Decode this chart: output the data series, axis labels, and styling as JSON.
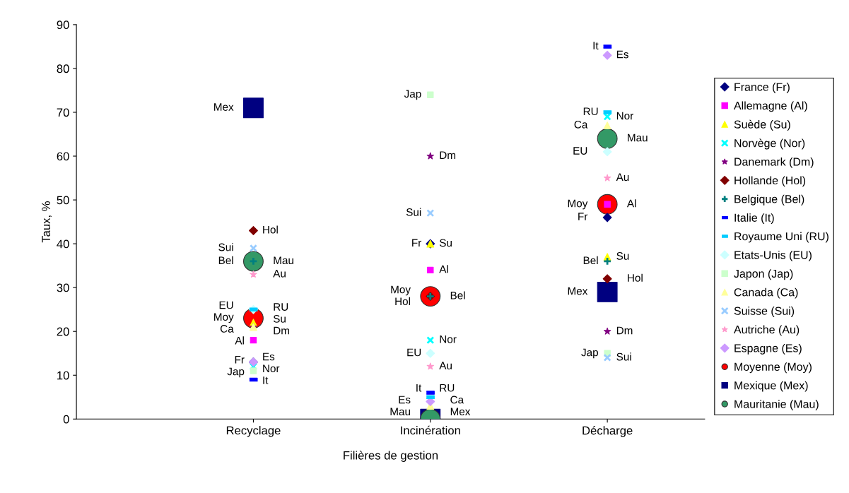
{
  "chart_data": {
    "type": "scatter",
    "xlabel": "Filières de gestion",
    "ylabel": "Taux, %",
    "categories": [
      "Recyclage",
      "Incinération",
      "Décharge"
    ],
    "ylim": [
      0,
      90
    ],
    "yticks": [
      0,
      10,
      20,
      30,
      40,
      50,
      60,
      70,
      80,
      90
    ],
    "grid": false,
    "legend": "right",
    "series": [
      {
        "name": "France (Fr)",
        "color": "#000080",
        "marker": "diamond",
        "values": [
          13,
          40,
          46
        ],
        "value_labels": [
          "Fr",
          "Fr",
          "Fr"
        ]
      },
      {
        "name": "Allemagne (Al)",
        "color": "#ff00ff",
        "marker": "square",
        "values": [
          18,
          34,
          49
        ],
        "value_labels": [
          "Al",
          "Al",
          "Al"
        ]
      },
      {
        "name": "Suède (Su)",
        "color": "#ffff00",
        "marker": "triangle",
        "values": [
          22,
          40,
          37
        ],
        "value_labels": [
          "Su",
          "Su",
          "Su"
        ]
      },
      {
        "name": "Norvège (Nor)",
        "color": "#00ffff",
        "marker": "cross",
        "values": [
          12,
          18,
          69
        ],
        "value_labels": [
          "Nor",
          "Nor",
          "Nor"
        ]
      },
      {
        "name": "Danemark (Dm)",
        "color": "#800080",
        "marker": "star",
        "values": [
          21,
          60,
          20
        ],
        "value_labels": [
          "Dm",
          "Dm",
          "Dm"
        ]
      },
      {
        "name": "Hollande (Hol)",
        "color": "#800000",
        "marker": "diamond",
        "values": [
          43,
          28,
          32
        ],
        "value_labels": [
          "Hol",
          "Hol",
          "Hol"
        ]
      },
      {
        "name": "Belgique (Bel)",
        "color": "#008080",
        "marker": "plus",
        "values": [
          36,
          28,
          36
        ],
        "value_labels": [
          "Bel",
          "Bel",
          "Bel"
        ]
      },
      {
        "name": "Italie (It)",
        "color": "#0000ff",
        "values": [
          9,
          6,
          85
        ],
        "value_labels": [
          "It",
          "It",
          "It"
        ]
      },
      {
        "name": "Royaume Uni (RU)",
        "color": "#00ccff",
        "values": [
          25,
          5,
          70
        ],
        "value_labels": [
          "RU",
          "RU",
          "RU"
        ]
      },
      {
        "name": "Etats-Unis (EU)",
        "color": "#ccffff",
        "marker": "diamond",
        "values": [
          25,
          15,
          61
        ],
        "value_labels": [
          "EU",
          "EU",
          "EU"
        ]
      },
      {
        "name": "Japon (Jap)",
        "color": "#ccffcc",
        "marker": "square",
        "values": [
          11,
          74,
          15
        ],
        "value_labels": [
          "Jap",
          "Jap",
          "Jap"
        ]
      },
      {
        "name": "Canada (Ca)",
        "color": "#ffff99",
        "marker": "triangle",
        "values": [
          21,
          3,
          67
        ],
        "value_labels": [
          "Ca",
          "Ca",
          "Ca"
        ]
      },
      {
        "name": "Suisse (Sui)",
        "color": "#99ccff",
        "marker": "cross",
        "values": [
          39,
          47,
          14
        ],
        "value_labels": [
          "Sui",
          "Sui",
          "Sui"
        ]
      },
      {
        "name": "Autriche (Au)",
        "color": "#ff99cc",
        "marker": "star",
        "values": [
          33,
          12,
          55
        ],
        "value_labels": [
          "Au",
          "Au",
          "Au"
        ]
      },
      {
        "name": "Espagne (Es)",
        "color": "#cc99ff",
        "marker": "diamond",
        "values": [
          13,
          4,
          83
        ],
        "value_labels": [
          "Es",
          "Es",
          "Es"
        ]
      },
      {
        "name": "Moyenne (Moy)",
        "color": "#ff0000",
        "marker": "circle",
        "values": [
          23,
          28,
          49
        ],
        "value_labels": [
          "Moy",
          "Moy",
          "Moy"
        ]
      },
      {
        "name": "Mexique (Mex)",
        "color": "#000080",
        "marker": "square-large",
        "values": [
          71,
          0,
          29
        ],
        "value_labels": [
          "Mex",
          "Mex",
          "Mex"
        ]
      },
      {
        "name": "Mauritanie (Mau)",
        "color": "#339966",
        "marker": "circle",
        "values": [
          36,
          0,
          64
        ],
        "value_labels": [
          "Mau",
          "Mau",
          "Mau"
        ]
      }
    ]
  }
}
